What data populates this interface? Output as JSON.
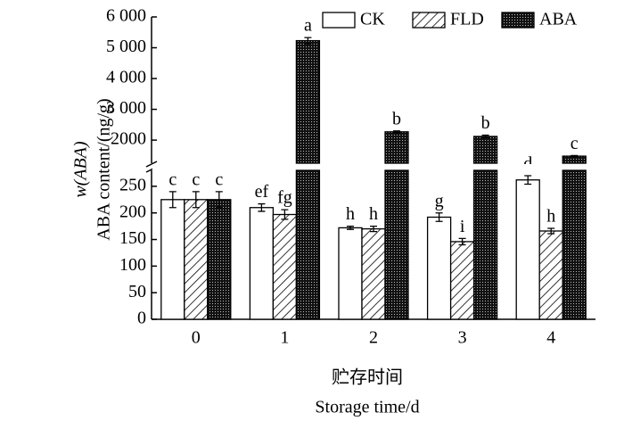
{
  "chart_data": {
    "type": "bar",
    "y_label": [
      "w(ABA)",
      "ABA content/(ng/g)"
    ],
    "x_label": [
      "贮存时间",
      "Storage time/d"
    ],
    "categories": [
      "0",
      "1",
      "2",
      "3",
      "4"
    ],
    "series": [
      {
        "name": "CK",
        "color": "#ffffff",
        "pattern": "none",
        "values": [
          225,
          210,
          172,
          192,
          262
        ],
        "errors": [
          15,
          7,
          3,
          8,
          8
        ],
        "annotations": [
          "c",
          "ef",
          "h",
          "g",
          "d"
        ]
      },
      {
        "name": "FLD",
        "color": "#ffffff",
        "pattern": "hatch",
        "values": [
          225,
          197,
          170,
          146,
          166
        ],
        "errors": [
          15,
          9,
          5,
          6,
          5
        ],
        "annotations": [
          "c",
          "fg",
          "h",
          "i",
          "h"
        ]
      },
      {
        "name": "ABA",
        "color": "#111111",
        "pattern": "dots",
        "values": [
          225,
          5230,
          2270,
          2120,
          1480
        ],
        "errors": [
          15,
          100,
          30,
          40,
          20
        ],
        "annotations": [
          "c",
          "a",
          "b",
          "b",
          "c"
        ]
      }
    ],
    "axis_break": {
      "lower": {
        "ylim": [
          0,
          280
        ],
        "yticks": [
          0,
          50,
          100,
          150,
          200,
          250
        ]
      },
      "upper": {
        "ylim": [
          1250,
          6000
        ],
        "yticks": [
          {
            "value": 2000,
            "label": "2000"
          },
          {
            "value": 3000,
            "label": "3 000"
          },
          {
            "value": 4000,
            "label": "4 000"
          },
          {
            "value": 5000,
            "label": "5 000"
          },
          {
            "value": 6000,
            "label": "6 000"
          }
        ]
      }
    },
    "legend": "top-right"
  }
}
